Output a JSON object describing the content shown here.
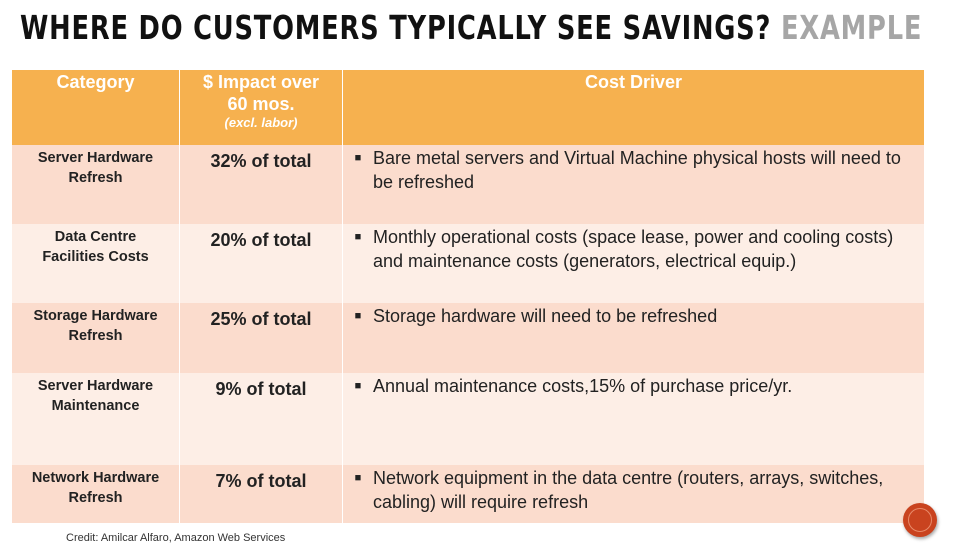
{
  "title": {
    "main": "Where do customers typically see savings?",
    "accent": "Example"
  },
  "table": {
    "headers": {
      "category": "Category",
      "impact_line1": "$ Impact over",
      "impact_line2": "60 mos.",
      "impact_note": "(excl. labor)",
      "driver": "Cost Driver"
    },
    "rows": [
      {
        "category_line1": "Server Hardware",
        "category_line2": "Refresh",
        "impact": "32% of total",
        "driver": "Bare metal servers and Virtual Machine physical hosts will need to be refreshed"
      },
      {
        "category_line1": "Data Centre",
        "category_line2": "Facilities Costs",
        "impact": "20% of total",
        "driver": "Monthly operational costs (space lease, power and cooling costs) and maintenance costs (generators, electrical equip.)"
      },
      {
        "category_line1": "Storage Hardware",
        "category_line2": "Refresh",
        "impact": "25% of total",
        "driver": "Storage hardware will need to be refreshed"
      },
      {
        "category_line1": "Server Hardware",
        "category_line2": "Maintenance",
        "impact": "9% of total",
        "driver": "Annual maintenance costs,15% of purchase price/yr."
      },
      {
        "category_line1": "Network Hardware",
        "category_line2": "Refresh",
        "impact": "7% of total",
        "driver": "Network equipment in the data centre (routers, arrays, switches, cabling) will require refresh"
      }
    ]
  },
  "credit": "Credit: Amilcar Alfaro, Amazon Web Services",
  "colors": {
    "header_bg": "#f6b14f",
    "row_dark": "#fbdccd",
    "row_light": "#fdeee6",
    "accent_text": "#a6a6a6",
    "logo": "#c9431f"
  },
  "icons": {
    "bullet": "square-bullet",
    "logo": "circle-logo"
  }
}
